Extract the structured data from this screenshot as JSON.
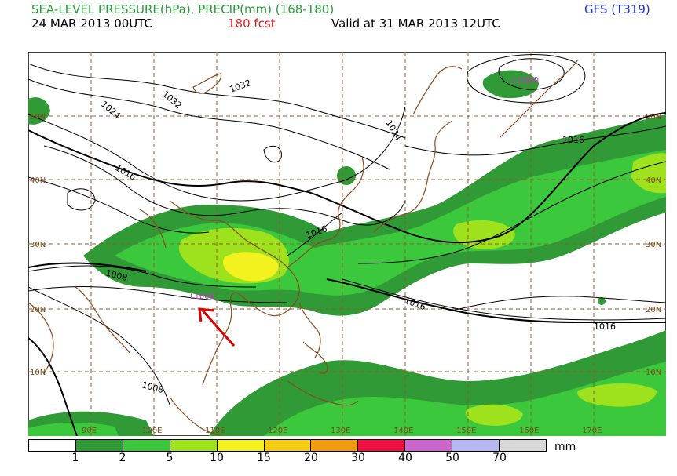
{
  "header": {
    "title": "SEA-LEVEL PRESSURE(hPa), PRECIP(mm) (168-180)",
    "model": "GFS (T319)",
    "run": "24 MAR 2013 00UTC",
    "forecast": "180 fcst",
    "valid": "Valid at 31 MAR 2013 12UTC"
  },
  "map": {
    "lon_labels": [
      "90E",
      "100E",
      "110E",
      "120E",
      "130E",
      "140E",
      "150E",
      "160E",
      "170E"
    ],
    "lat_labels": [
      "50N",
      "40N",
      "30N",
      "20N",
      "10N"
    ],
    "isobar_labels": [
      "1032",
      "1032",
      "1024",
      "1024",
      "1016",
      "1016",
      "1016",
      "1016",
      "1016",
      "1008",
      "1008"
    ],
    "low_labels": [
      "L1000",
      "L1008"
    ],
    "colors": {
      "coast": "#8b4a1f",
      "grid": "#9b5a2a",
      "isobar": "#000000",
      "low": "#cc33cc",
      "arrow": "#e00000"
    }
  },
  "legend": {
    "unit": "mm",
    "levels": [
      "1",
      "2",
      "5",
      "10",
      "15",
      "20",
      "30",
      "40",
      "50",
      "70"
    ],
    "colors": [
      "#ffffff",
      "#2f9a36",
      "#3cc83c",
      "#9ee21e",
      "#f3f21e",
      "#f6cc12",
      "#f49a0e",
      "#ee1040",
      "#cc66cc",
      "#b8b8f0",
      "#d8d8d8"
    ]
  }
}
